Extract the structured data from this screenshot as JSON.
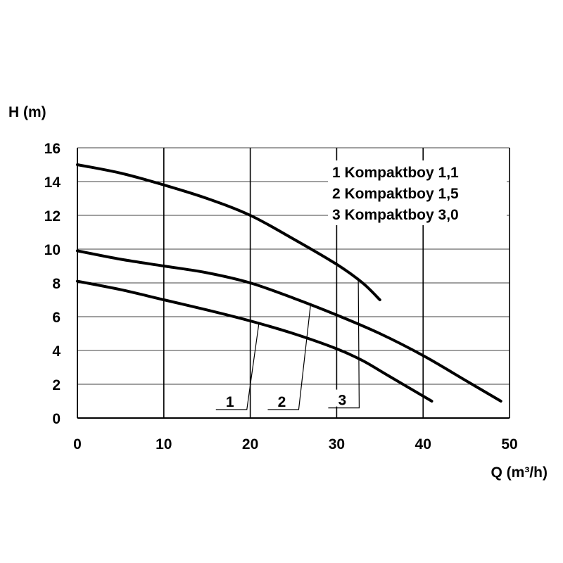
{
  "chart_data": {
    "type": "line",
    "ylabel": "H (m)",
    "xlabel": "Q (m³/h)",
    "xlim": [
      0,
      50
    ],
    "ylim": [
      0,
      16
    ],
    "x_ticks": [
      0,
      10,
      20,
      30,
      40,
      50
    ],
    "y_ticks": [
      0,
      2,
      4,
      6,
      8,
      10,
      12,
      14,
      16
    ],
    "grid": true,
    "legend_position": "top-right",
    "legend": [
      "1 Kompaktboy 1,1",
      "2 Kompaktboy 1,5",
      "3 Kompaktboy 3,0"
    ],
    "series": [
      {
        "name": "1",
        "points": [
          [
            0,
            8.1
          ],
          [
            5,
            7.6
          ],
          [
            10,
            7.0
          ],
          [
            15,
            6.4
          ],
          [
            20,
            5.75
          ],
          [
            25,
            5.0
          ],
          [
            30,
            4.1
          ],
          [
            33,
            3.4
          ],
          [
            36,
            2.5
          ],
          [
            41,
            1.0
          ]
        ]
      },
      {
        "name": "2",
        "points": [
          [
            0,
            9.9
          ],
          [
            5,
            9.4
          ],
          [
            10,
            9.0
          ],
          [
            15,
            8.6
          ],
          [
            20,
            8.0
          ],
          [
            25,
            7.1
          ],
          [
            30,
            6.1
          ],
          [
            35,
            5.0
          ],
          [
            40,
            3.7
          ],
          [
            45,
            2.2
          ],
          [
            49,
            1.0
          ]
        ]
      },
      {
        "name": "3",
        "points": [
          [
            0,
            15.0
          ],
          [
            5,
            14.5
          ],
          [
            10,
            13.8
          ],
          [
            15,
            13.0
          ],
          [
            20,
            12.0
          ],
          [
            25,
            10.6
          ],
          [
            30,
            9.1
          ],
          [
            33,
            8.0
          ],
          [
            35,
            7.0
          ]
        ]
      }
    ],
    "curve_labels": [
      {
        "text": "1",
        "target": [
          21,
          5.6
        ],
        "label_at": [
          17,
          1.0
        ]
      },
      {
        "text": "2",
        "target": [
          27,
          6.8
        ],
        "label_at": [
          23,
          1.0
        ]
      },
      {
        "text": "3",
        "target": [
          32.5,
          8.3
        ],
        "label_at": [
          30,
          1.1
        ]
      }
    ]
  }
}
